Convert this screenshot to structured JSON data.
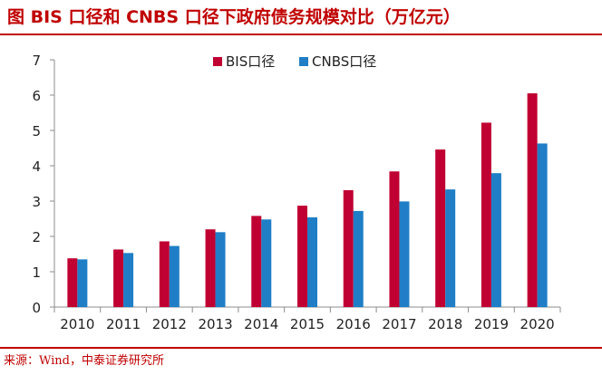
{
  "header": {
    "title": "图  BIS 口径和 CNBS 口径下政府债务规模对比（万亿元）"
  },
  "footer": {
    "source": "来源：Wind，中泰证券研究所"
  },
  "colors": {
    "bis": "#c00032",
    "cnbs": "#1f7ec6",
    "accent": "#c00000"
  },
  "chart_data": {
    "type": "bar",
    "categories": [
      "2010",
      "2011",
      "2012",
      "2013",
      "2014",
      "2015",
      "2016",
      "2017",
      "2018",
      "2019",
      "2020"
    ],
    "series": [
      {
        "name": "BIS口径",
        "values": [
          1.38,
          1.63,
          1.86,
          2.2,
          2.58,
          2.87,
          3.31,
          3.84,
          4.46,
          5.22,
          6.05
        ]
      },
      {
        "name": "CNBS口径",
        "values": [
          1.35,
          1.53,
          1.73,
          2.12,
          2.48,
          2.54,
          2.72,
          2.99,
          3.33,
          3.79,
          4.63
        ]
      }
    ],
    "ylim": [
      0,
      7
    ],
    "yticks": [
      "0",
      "1",
      "2",
      "3",
      "4",
      "5",
      "6",
      "7"
    ],
    "legend_position": "top-center",
    "grid": false
  }
}
